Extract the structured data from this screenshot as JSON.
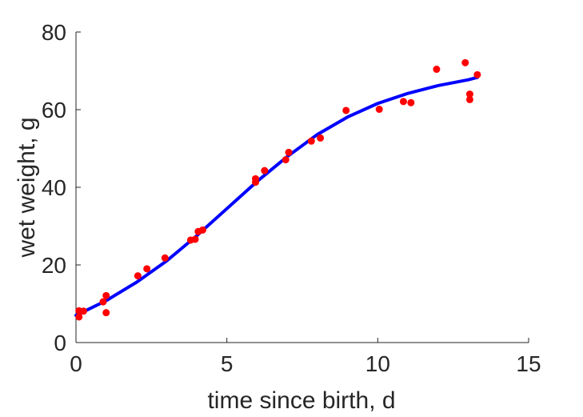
{
  "chart_data": {
    "type": "scatter",
    "title": "",
    "xlabel": "time since birth, d",
    "ylabel": "wet weight, g",
    "xlim": [
      0,
      15
    ],
    "ylim": [
      0,
      80
    ],
    "xticks": [
      0,
      5,
      10,
      15
    ],
    "yticks": [
      0,
      20,
      40,
      60,
      80
    ],
    "grid": false,
    "series": [
      {
        "kind": "scatter",
        "color": "#ff0000",
        "points": [
          [
            0.1,
            6.6
          ],
          [
            0.1,
            8.2
          ],
          [
            0.25,
            8.1
          ],
          [
            0.9,
            10.5
          ],
          [
            1.0,
            12.1
          ],
          [
            1.0,
            7.7
          ],
          [
            2.05,
            17.2
          ],
          [
            2.35,
            19.0
          ],
          [
            2.95,
            21.8
          ],
          [
            3.8,
            26.4
          ],
          [
            3.95,
            26.6
          ],
          [
            4.05,
            28.6
          ],
          [
            4.2,
            29.0
          ],
          [
            5.95,
            41.3
          ],
          [
            5.95,
            42.2
          ],
          [
            6.25,
            44.3
          ],
          [
            6.95,
            47.1
          ],
          [
            7.05,
            49.0
          ],
          [
            7.8,
            51.9
          ],
          [
            8.1,
            52.7
          ],
          [
            8.95,
            59.8
          ],
          [
            10.05,
            60.1
          ],
          [
            10.85,
            62.1
          ],
          [
            11.1,
            61.8
          ],
          [
            11.95,
            70.4
          ],
          [
            12.9,
            72.1
          ],
          [
            13.05,
            64.0
          ],
          [
            13.05,
            62.6
          ],
          [
            13.3,
            69.0
          ]
        ]
      },
      {
        "kind": "line",
        "color": "#0000ff",
        "points": [
          [
            0.0,
            7.0
          ],
          [
            1.0,
            10.8
          ],
          [
            2.0,
            15.5
          ],
          [
            3.0,
            21.0
          ],
          [
            4.0,
            27.5
          ],
          [
            5.0,
            34.5
          ],
          [
            6.0,
            41.5
          ],
          [
            7.0,
            47.9
          ],
          [
            8.0,
            53.6
          ],
          [
            9.0,
            58.1
          ],
          [
            10.0,
            61.6
          ],
          [
            11.0,
            64.2
          ],
          [
            12.0,
            66.2
          ],
          [
            13.0,
            67.7
          ],
          [
            13.3,
            68.3
          ]
        ]
      }
    ]
  }
}
